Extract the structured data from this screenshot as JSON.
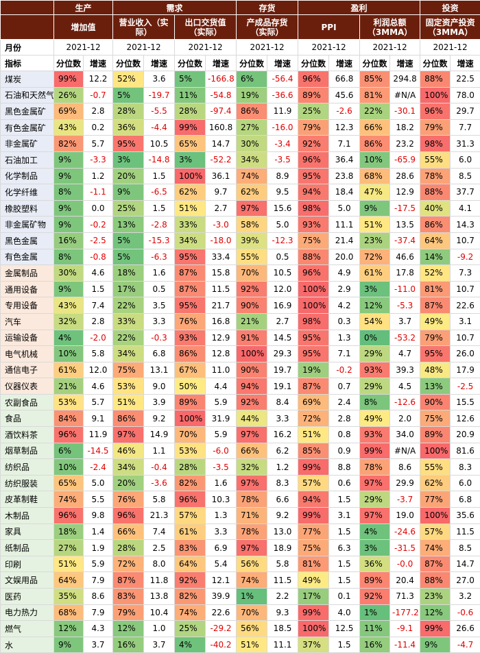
{
  "header": {
    "groups": [
      "生产",
      "需求",
      "存货",
      "盈利",
      "投资"
    ],
    "corner_label": "",
    "subheaders": [
      "增加值",
      "营业收入（实际）",
      "出口交货值（实际）",
      "产成品存货（实际）",
      "PPI",
      "利润总额（3MMA）",
      "固定资产投资（3MMA）"
    ],
    "month_label": "月份",
    "month_value": "2021-12",
    "index_label": "指标",
    "pct_label": "分位数",
    "growth_label": "增速"
  },
  "rows": [
    {
      "name": "煤炭",
      "cells": [
        [
          "99%",
          "12.2"
        ],
        [
          "52%",
          "3.6"
        ],
        [
          "5%",
          "-166.8"
        ],
        [
          "6%",
          "-56.4"
        ],
        [
          "96%",
          "66.8"
        ],
        [
          "85%",
          "294.8"
        ],
        [
          "88%",
          "22.5"
        ]
      ]
    },
    {
      "name": "石油和天然气",
      "cells": [
        [
          "26%",
          "-0.7"
        ],
        [
          "5%",
          "-19.7"
        ],
        [
          "11%",
          "-54.8"
        ],
        [
          "19%",
          "-36.6"
        ],
        [
          "89%",
          "45.6"
        ],
        [
          "81%",
          "#N/A"
        ],
        [
          "100%",
          "78.0"
        ]
      ]
    },
    {
      "name": "黑色金属矿",
      "cells": [
        [
          "69%",
          "2.8"
        ],
        [
          "28%",
          "-5.5"
        ],
        [
          "28%",
          "-97.4"
        ],
        [
          "86%",
          "11.9"
        ],
        [
          "25%",
          "-2.6"
        ],
        [
          "22%",
          "-30.1"
        ],
        [
          "96%",
          "29.7"
        ]
      ]
    },
    {
      "name": "有色金属矿",
      "cells": [
        [
          "43%",
          "0.2"
        ],
        [
          "36%",
          "-4.4"
        ],
        [
          "99%",
          "160.8"
        ],
        [
          "27%",
          "-16.0"
        ],
        [
          "79%",
          "12.3"
        ],
        [
          "66%",
          "18.2"
        ],
        [
          "79%",
          "7.7"
        ]
      ]
    },
    {
      "name": "非金属矿",
      "cells": [
        [
          "82%",
          "5.7"
        ],
        [
          "95%",
          "10.5"
        ],
        [
          "65%",
          "14.7"
        ],
        [
          "30%",
          "-3.4"
        ],
        [
          "92%",
          "7.1"
        ],
        [
          "86%",
          "23.2"
        ],
        [
          "98%",
          "31.3"
        ]
      ]
    },
    {
      "name": "石油加工",
      "cells": [
        [
          "9%",
          "-3.3"
        ],
        [
          "3%",
          "-14.8"
        ],
        [
          "3%",
          "-52.2"
        ],
        [
          "34%",
          "-3.5"
        ],
        [
          "96%",
          "36.4"
        ],
        [
          "10%",
          "-65.9"
        ],
        [
          "55%",
          "6.0"
        ]
      ]
    },
    {
      "name": "化学制品",
      "cells": [
        [
          "9%",
          "1.2"
        ],
        [
          "20%",
          "1.5"
        ],
        [
          "100%",
          "36.1"
        ],
        [
          "74%",
          "8.9"
        ],
        [
          "95%",
          "23.8"
        ],
        [
          "68%",
          "28.6"
        ],
        [
          "78%",
          "8.5"
        ]
      ]
    },
    {
      "name": "化学纤维",
      "cells": [
        [
          "8%",
          "-1.1"
        ],
        [
          "9%",
          "-6.5"
        ],
        [
          "62%",
          "9.7"
        ],
        [
          "62%",
          "9.5"
        ],
        [
          "94%",
          "18.4"
        ],
        [
          "47%",
          "12.9"
        ],
        [
          "88%",
          "37.7"
        ]
      ]
    },
    {
      "name": "橡胶塑料",
      "cells": [
        [
          "9%",
          "0.0"
        ],
        [
          "25%",
          "1.5"
        ],
        [
          "51%",
          "2.7"
        ],
        [
          "97%",
          "15.6"
        ],
        [
          "98%",
          "5.0"
        ],
        [
          "9%",
          "-17.5"
        ],
        [
          "40%",
          "4.1"
        ]
      ]
    },
    {
      "name": "非金属矿物",
      "cells": [
        [
          "9%",
          "-0.2"
        ],
        [
          "13%",
          "-2.8"
        ],
        [
          "33%",
          "-3.0"
        ],
        [
          "58%",
          "5.0"
        ],
        [
          "93%",
          "11.1"
        ],
        [
          "51%",
          "13.5"
        ],
        [
          "86%",
          "14.3"
        ]
      ]
    },
    {
      "name": "黑色金属",
      "cells": [
        [
          "16%",
          "-2.5"
        ],
        [
          "5%",
          "-15.3"
        ],
        [
          "34%",
          "-18.0"
        ],
        [
          "39%",
          "-12.3"
        ],
        [
          "75%",
          "21.4"
        ],
        [
          "23%",
          "-37.4"
        ],
        [
          "64%",
          "10.7"
        ]
      ]
    },
    {
      "name": "有色金属",
      "cells": [
        [
          "8%",
          "-0.8"
        ],
        [
          "5%",
          "-6.3"
        ],
        [
          "95%",
          "33.4"
        ],
        [
          "55%",
          "0.5"
        ],
        [
          "88%",
          "20.0"
        ],
        [
          "72%",
          "46.6"
        ],
        [
          "14%",
          "-9.2"
        ]
      ]
    },
    {
      "name": "金属制品",
      "cells": [
        [
          "30%",
          "4.6"
        ],
        [
          "18%",
          "1.6"
        ],
        [
          "87%",
          "15.8"
        ],
        [
          "70%",
          "10.5"
        ],
        [
          "96%",
          "4.9"
        ],
        [
          "61%",
          "17.8"
        ],
        [
          "52%",
          "7.3"
        ]
      ]
    },
    {
      "name": "通用设备",
      "cells": [
        [
          "9%",
          "1.5"
        ],
        [
          "17%",
          "0.5"
        ],
        [
          "87%",
          "11.5"
        ],
        [
          "92%",
          "12.0"
        ],
        [
          "100%",
          "2.9"
        ],
        [
          "3%",
          "-11.0"
        ],
        [
          "81%",
          "10.7"
        ]
      ]
    },
    {
      "name": "专用设备",
      "cells": [
        [
          "43%",
          "7.4"
        ],
        [
          "22%",
          "3.5"
        ],
        [
          "95%",
          "21.7"
        ],
        [
          "90%",
          "16.9"
        ],
        [
          "100%",
          "4.2"
        ],
        [
          "12%",
          "-5.3"
        ],
        [
          "87%",
          "22.6"
        ]
      ]
    },
    {
      "name": "汽车",
      "cells": [
        [
          "32%",
          "2.8"
        ],
        [
          "33%",
          "3.3"
        ],
        [
          "76%",
          "16.8"
        ],
        [
          "21%",
          "2.7"
        ],
        [
          "98%",
          "0.3"
        ],
        [
          "54%",
          "3.7"
        ],
        [
          "49%",
          "3.1"
        ]
      ]
    },
    {
      "name": "运输设备",
      "cells": [
        [
          "4%",
          "-2.0"
        ],
        [
          "22%",
          "-0.3"
        ],
        [
          "93%",
          "12.9"
        ],
        [
          "91%",
          "14.5"
        ],
        [
          "95%",
          "1.3"
        ],
        [
          "0%",
          "-53.2"
        ],
        [
          "79%",
          "10.7"
        ]
      ]
    },
    {
      "name": "电气机械",
      "cells": [
        [
          "10%",
          "5.8"
        ],
        [
          "34%",
          "6.8"
        ],
        [
          "86%",
          "12.8"
        ],
        [
          "100%",
          "29.3"
        ],
        [
          "95%",
          "7.1"
        ],
        [
          "29%",
          "4.7"
        ],
        [
          "95%",
          "26.0"
        ]
      ]
    },
    {
      "name": "通信电子",
      "cells": [
        [
          "61%",
          "12.0"
        ],
        [
          "75%",
          "13.1"
        ],
        [
          "67%",
          "11.0"
        ],
        [
          "90%",
          "19.7"
        ],
        [
          "19%",
          "-0.2"
        ],
        [
          "93%",
          "39.3"
        ],
        [
          "48%",
          "17.9"
        ]
      ]
    },
    {
      "name": "仪器仪表",
      "cells": [
        [
          "21%",
          "4.6"
        ],
        [
          "53%",
          "9.0"
        ],
        [
          "50%",
          "4.4"
        ],
        [
          "94%",
          "19.1"
        ],
        [
          "87%",
          "0.7"
        ],
        [
          "29%",
          "4.5"
        ],
        [
          "13%",
          "-2.5"
        ]
      ]
    },
    {
      "name": "农副食品",
      "cells": [
        [
          "53%",
          "5.7"
        ],
        [
          "51%",
          "3.9"
        ],
        [
          "89%",
          "5.9"
        ],
        [
          "92%",
          "8.4"
        ],
        [
          "69%",
          "2.4"
        ],
        [
          "8%",
          "-12.6"
        ],
        [
          "90%",
          "15.5"
        ]
      ]
    },
    {
      "name": "食品",
      "cells": [
        [
          "84%",
          "9.1"
        ],
        [
          "86%",
          "9.2"
        ],
        [
          "100%",
          "31.9"
        ],
        [
          "44%",
          "3.3"
        ],
        [
          "72%",
          "2.8"
        ],
        [
          "49%",
          "2.0"
        ],
        [
          "75%",
          "12.6"
        ]
      ]
    },
    {
      "name": "酒饮料茶",
      "cells": [
        [
          "96%",
          "11.9"
        ],
        [
          "97%",
          "14.9"
        ],
        [
          "70%",
          "5.9"
        ],
        [
          "97%",
          "16.2"
        ],
        [
          "51%",
          "0.8"
        ],
        [
          "93%",
          "34.0"
        ],
        [
          "89%",
          "20.9"
        ]
      ]
    },
    {
      "name": "烟草制品",
      "cells": [
        [
          "6%",
          "-14.5"
        ],
        [
          "46%",
          "1.1"
        ],
        [
          "53%",
          "-6.0"
        ],
        [
          "66%",
          "6.2"
        ],
        [
          "85%",
          "0.9"
        ],
        [
          "99%",
          "#N/A"
        ],
        [
          "100%",
          "81.6"
        ]
      ]
    },
    {
      "name": "纺织品",
      "cells": [
        [
          "10%",
          "-2.4"
        ],
        [
          "34%",
          "-0.4"
        ],
        [
          "28%",
          "-3.5"
        ],
        [
          "32%",
          "1.2"
        ],
        [
          "99%",
          "8.8"
        ],
        [
          "78%",
          "8.6"
        ],
        [
          "55%",
          "8.3"
        ]
      ]
    },
    {
      "name": "纺织服装",
      "cells": [
        [
          "65%",
          "5.0"
        ],
        [
          "20%",
          "-3.6"
        ],
        [
          "82%",
          "1.6"
        ],
        [
          "97%",
          "8.3"
        ],
        [
          "57%",
          "0.6"
        ],
        [
          "97%",
          "29.9"
        ],
        [
          "62%",
          "6.0"
        ]
      ]
    },
    {
      "name": "皮革制鞋",
      "cells": [
        [
          "74%",
          "5.5"
        ],
        [
          "76%",
          "5.8"
        ],
        [
          "96%",
          "10.3"
        ],
        [
          "78%",
          "6.6"
        ],
        [
          "94%",
          "1.5"
        ],
        [
          "29%",
          "-3.7"
        ],
        [
          "77%",
          "6.8"
        ]
      ]
    },
    {
      "name": "木制品",
      "cells": [
        [
          "96%",
          "9.8"
        ],
        [
          "96%",
          "21.3"
        ],
        [
          "57%",
          "1.3"
        ],
        [
          "71%",
          "9.2"
        ],
        [
          "99%",
          "3.1"
        ],
        [
          "97%",
          "19.0"
        ],
        [
          "100%",
          "35.6"
        ]
      ]
    },
    {
      "name": "家具",
      "cells": [
        [
          "18%",
          "1.4"
        ],
        [
          "66%",
          "7.4"
        ],
        [
          "61%",
          "3.3"
        ],
        [
          "78%",
          "13.0"
        ],
        [
          "77%",
          "1.5"
        ],
        [
          "4%",
          "-24.6"
        ],
        [
          "57%",
          "11.5"
        ]
      ]
    },
    {
      "name": "纸制品",
      "cells": [
        [
          "27%",
          "1.9"
        ],
        [
          "28%",
          "2.5"
        ],
        [
          "83%",
          "6.9"
        ],
        [
          "97%",
          "18.9"
        ],
        [
          "75%",
          "6.3"
        ],
        [
          "3%",
          "-31.5"
        ],
        [
          "74%",
          "8.5"
        ]
      ]
    },
    {
      "name": "印刷",
      "cells": [
        [
          "51%",
          "5.9"
        ],
        [
          "72%",
          "8.0"
        ],
        [
          "64%",
          "5.4"
        ],
        [
          "56%",
          "5.8"
        ],
        [
          "81%",
          "1.5"
        ],
        [
          "36%",
          "-0.0"
        ],
        [
          "87%",
          "14.7"
        ]
      ]
    },
    {
      "name": "文娱用品",
      "cells": [
        [
          "64%",
          "7.9"
        ],
        [
          "87%",
          "11.8"
        ],
        [
          "92%",
          "12.1"
        ],
        [
          "74%",
          "11.5"
        ],
        [
          "49%",
          "1.5"
        ],
        [
          "89%",
          "20.4"
        ],
        [
          "88%",
          "27.0"
        ]
      ]
    },
    {
      "name": "医药",
      "cells": [
        [
          "35%",
          "8.6"
        ],
        [
          "83%",
          "13.8"
        ],
        [
          "82%",
          "39.9"
        ],
        [
          "1%",
          "2.2"
        ],
        [
          "17%",
          "0.1"
        ],
        [
          "92%",
          "71.3"
        ],
        [
          "23%",
          "3.2"
        ]
      ]
    },
    {
      "name": "电力热力",
      "cells": [
        [
          "68%",
          "7.9"
        ],
        [
          "79%",
          "10.4"
        ],
        [
          "74%",
          "22.6"
        ],
        [
          "70%",
          "9.3"
        ],
        [
          "99%",
          "4.0"
        ],
        [
          "1%",
          "-177.2"
        ],
        [
          "12%",
          "-0.6"
        ]
      ]
    },
    {
      "name": "燃气",
      "cells": [
        [
          "12%",
          "4.3"
        ],
        [
          "12%",
          "1.0"
        ],
        [
          "25%",
          "-29.2"
        ],
        [
          "56%",
          "18.5"
        ],
        [
          "100%",
          "12.5"
        ],
        [
          "11%",
          "-9.1"
        ],
        [
          "99%",
          "26.6"
        ]
      ]
    },
    {
      "name": "水",
      "cells": [
        [
          "9%",
          "3.7"
        ],
        [
          "16%",
          "3.7"
        ],
        [
          "4%",
          "-40.2"
        ],
        [
          "51%",
          "11.1"
        ],
        [
          "37%",
          "1.5"
        ],
        [
          "16%",
          "-11.4"
        ],
        [
          "9%",
          "-4.7"
        ]
      ]
    }
  ]
}
